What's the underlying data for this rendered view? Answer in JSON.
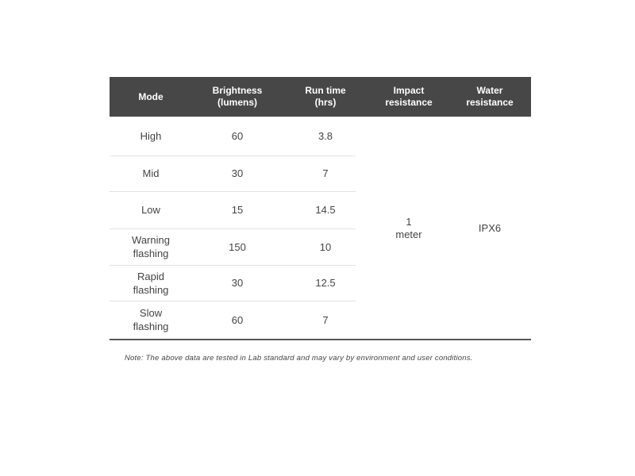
{
  "table": {
    "headers": [
      "Mode",
      "Brightness\n(lumens)",
      "Run time\n(hrs)",
      "Impact\nresistance",
      "Water\nresistance"
    ],
    "rows": [
      {
        "mode": "High",
        "brightness": "60",
        "runtime": "3.8"
      },
      {
        "mode": "Mid",
        "brightness": "30",
        "runtime": "7"
      },
      {
        "mode": "Low",
        "brightness": "15",
        "runtime": "14.5"
      },
      {
        "mode": "Warning\nflashing",
        "brightness": "150",
        "runtime": "10"
      },
      {
        "mode": "Rapid\nflashing",
        "brightness": "30",
        "runtime": "12.5"
      },
      {
        "mode": "Slow\nflashing",
        "brightness": "60",
        "runtime": "7"
      }
    ],
    "impact_resistance": "1\nmeter",
    "water_resistance": "IPX6",
    "header_color": "#474747"
  },
  "note": "Note: The above data are tested in Lab standard and may vary by environment and user conditions."
}
